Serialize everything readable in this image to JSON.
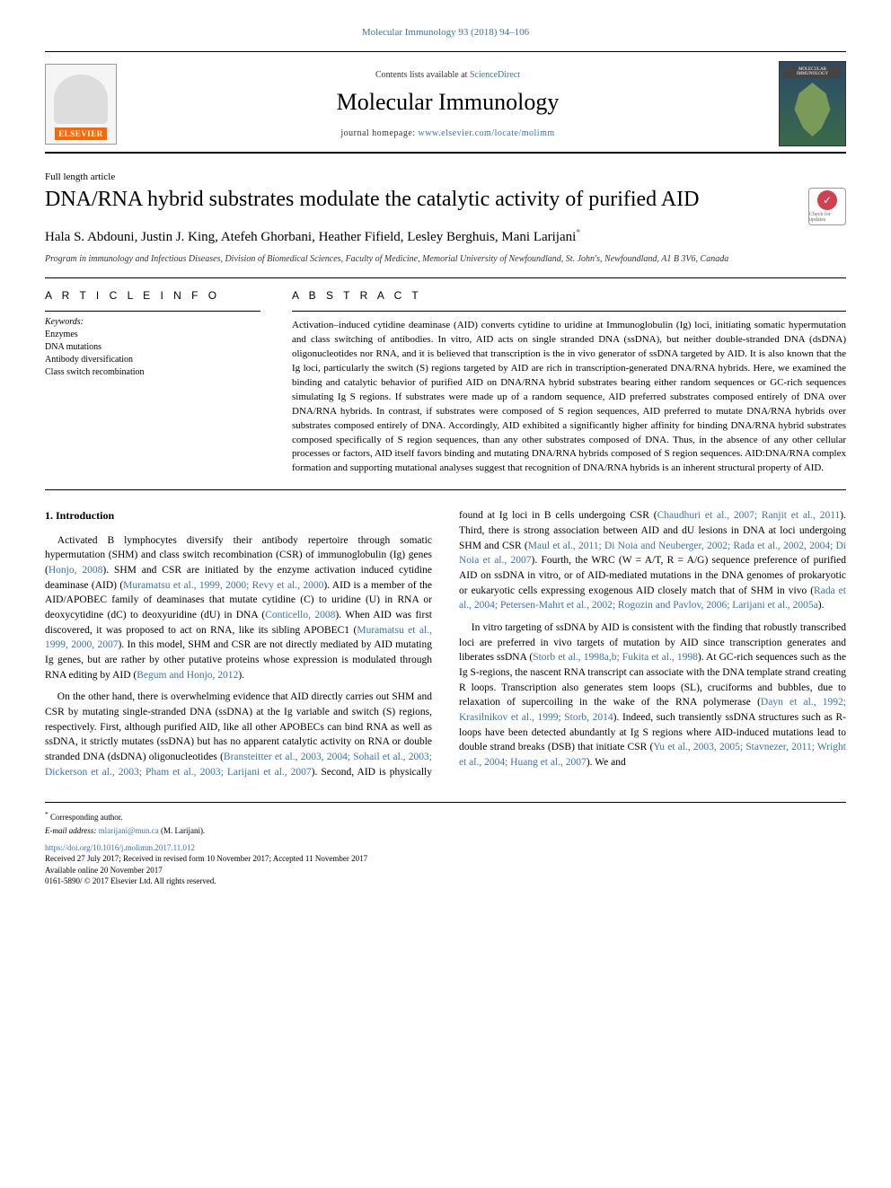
{
  "journal_ref": "Molecular Immunology 93 (2018) 94–106",
  "banner": {
    "lists_prefix": "Contents lists available at ",
    "lists_link": "ScienceDirect",
    "journal_name": "Molecular Immunology",
    "homepage_prefix": "journal homepage: ",
    "homepage_url": "www.elsevier.com/locate/molimm",
    "publisher": "ELSEVIER",
    "cover_label": "MOLECULAR IMMUNOLOGY"
  },
  "article_type": "Full length article",
  "title": "DNA/RNA hybrid substrates modulate the catalytic activity of purified AID",
  "checkmark": {
    "glyph": "✓",
    "label": "Check for updates"
  },
  "authors": "Hala S. Abdouni, Justin J. King, Atefeh Ghorbani, Heather Fifield, Lesley Berghuis, Mani Larijani",
  "corresponding_mark": "*",
  "affiliation": "Program in immunology and Infectious Diseases, Division of Biomedical Sciences, Faculty of Medicine, Memorial University of Newfoundland, St. John's, Newfoundland, A1 B 3V6, Canada",
  "info_head": "A R T I C L E  I N F O",
  "abstract_head": "A B S T R A C T",
  "keywords_label": "Keywords:",
  "keywords": [
    "Enzymes",
    "DNA mutations",
    "Antibody diversification",
    "Class switch recombination"
  ],
  "abstract": "Activation–induced cytidine deaminase (AID) converts cytidine to uridine at Immunoglobulin (Ig) loci, initiating somatic hypermutation and class switching of antibodies. In vitro, AID acts on single stranded DNA (ssDNA), but neither double-stranded DNA (dsDNA) oligonucleotides nor RNA, and it is believed that transcription is the in vivo generator of ssDNA targeted by AID. It is also known that the Ig loci, particularly the switch (S) regions targeted by AID are rich in transcription-generated DNA/RNA hybrids. Here, we examined the binding and catalytic behavior of purified AID on DNA/RNA hybrid substrates bearing either random sequences or GC-rich sequences simulating Ig S regions. If substrates were made up of a random sequence, AID preferred substrates composed entirely of DNA over DNA/RNA hybrids. In contrast, if substrates were composed of S region sequences, AID preferred to mutate DNA/RNA hybrids over substrates composed entirely of DNA. Accordingly, AID exhibited a significantly higher affinity for binding DNA/RNA hybrid substrates composed specifically of S region sequences, than any other substrates composed of DNA. Thus, in the absence of any other cellular processes or factors, AID itself favors binding and mutating DNA/RNA hybrids composed of S region sequences. AID:DNA/RNA complex formation and supporting mutational analyses suggest that recognition of DNA/RNA hybrids is an inherent structural property of AID.",
  "intro_head": "1. Introduction",
  "para1_a": "Activated B lymphocytes diversify their antibody repertoire through somatic hypermutation (SHM) and class switch recombination (CSR) of immunoglobulin (Ig) genes (",
  "para1_r1": "Honjo, 2008",
  "para1_b": "). SHM and CSR are initiated by the enzyme activation induced cytidine deaminase (AID) (",
  "para1_r2": "Muramatsu et al., 1999, 2000; Revy et al., 2000",
  "para1_c": "). AID is a member of the AID/APOBEC family of deaminases that mutate cytidine (C) to uridine (U) in RNA or deoxycytidine (dC) to deoxyuridine (dU) in DNA (",
  "para1_r3": "Conticello, 2008",
  "para1_d": "). When AID was first discovered, it was proposed to act on RNA, like its sibling APOBEC1 (",
  "para1_r4": "Muramatsu et al., 1999, 2000, 2007",
  "para1_e": "). In this model, SHM and CSR are not directly mediated by AID mutating Ig genes, but are rather by other putative proteins whose expression is modulated through RNA editing by AID (",
  "para1_r5": "Begum and Honjo, 2012",
  "para1_f": ").",
  "para2_a": "On the other hand, there is overwhelming evidence that AID directly carries out SHM and CSR by mutating single-stranded DNA (ssDNA) at the Ig variable and switch (S) regions, respectively. First, although purified AID, like all other APOBECs can bind RNA as well as ssDNA, it strictly mutates (ssDNA) but has no apparent catalytic activity on RNA or double stranded DNA (dsDNA) oligonucleotides (",
  "para2_r1": "Bransteitter et al., 2003, 2004; Sohail et al., 2003; Dickerson et al., 2003; Pham et al., 2003; Larijani et al., 2007",
  "para2_b": "). Second, AID is physically found at Ig loci in B cells undergoing CSR (",
  "para2_r2": "Chaudhuri et al., 2007; Ranjit et al., 2011",
  "para2_c": "). Third, there is strong association between AID and dU lesions in DNA at loci undergoing SHM and CSR (",
  "para2_r3": "Maul et al., 2011; Di Noia and Neuberger, 2002; Rada et al., 2002, 2004; Di Noia et al., 2007",
  "para2_d": "). Fourth, the WRC (W = A/T, R = A/G) sequence preference of purified AID on ssDNA in vitro, or of AID-mediated mutations in the DNA genomes of prokaryotic or eukaryotic cells expressing exogenous AID closely match that of SHM in vivo (",
  "para2_r4": "Rada et al., 2004; Petersen-Mahrt et al., 2002; Rogozin and Pavlov, 2006; Larijani et al., 2005a",
  "para2_e": ").",
  "para3_a": "In vitro targeting of ssDNA by AID is consistent with the finding that robustly transcribed loci are preferred in vivo targets of mutation by AID since transcription generates and liberates ssDNA (",
  "para3_r1": "Storb et al., 1998a,b; Fukita et al., 1998",
  "para3_b": "). At GC-rich sequences such as the Ig S-regions, the nascent RNA transcript can associate with the DNA template strand creating R loops. Transcription also generates stem loops (SL), cruciforms and bubbles, due to relaxation of supercoiling in the wake of the RNA polymerase (",
  "para3_r2": "Dayn et al., 1992; Krasilnikov et al., 1999; Storb, 2014",
  "para3_c": "). Indeed, such transiently ssDNA structures such as R-loops have been detected abundantly at Ig S regions where AID-induced mutations lead to double strand breaks (DSB) that initiate CSR (",
  "para3_r3": "Yu et al., 2003, 2005; Stavnezer, 2011; Wright et al., 2004; Huang et al., 2007",
  "para3_d": "). We and",
  "footer": {
    "corr_mark": "*",
    "corr_text": " Corresponding author.",
    "email_label": "E-mail address: ",
    "email": "mlarijani@mun.ca",
    "email_tail": " (M. Larijani).",
    "doi": "https://doi.org/10.1016/j.molimm.2017.11.012",
    "received": "Received 27 July 2017; Received in revised form 10 November 2017; Accepted 11 November 2017",
    "available": "Available online 20 November 2017",
    "copyright": "0161-5890/ © 2017 Elsevier Ltd. All rights reserved."
  }
}
